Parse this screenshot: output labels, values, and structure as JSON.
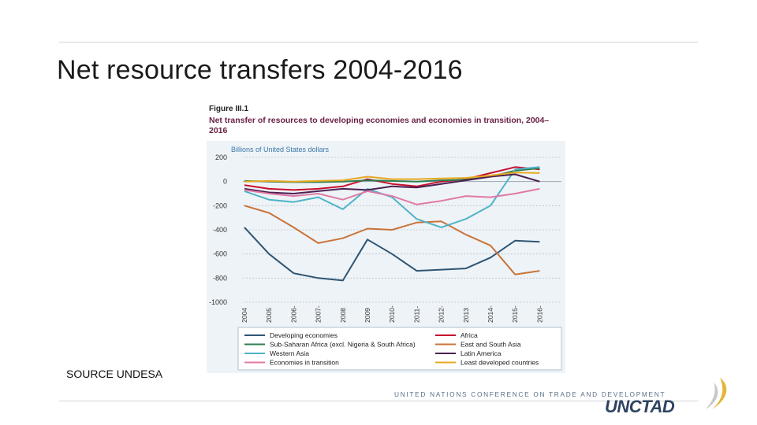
{
  "slide": {
    "title": "Net resource transfers 2004-2016",
    "source": "SOURCE UNDESA"
  },
  "figure": {
    "label": "Figure III.1",
    "caption": "Net transfer of resources to developing economies and economies in transition, 2004–2016",
    "unit": "Billions of United States dollars"
  },
  "footer": {
    "org_name": "UNITED NATIONS CONFERENCE ON TRADE AND DEVELOPMENT",
    "logo_text": "UNCTAD"
  },
  "chart_data": {
    "type": "line",
    "title": "Net transfer of resources to developing economies and economies in transition, 2004–2016",
    "ylabel": "Billions of United States dollars",
    "xlabel": "",
    "ylim": [
      -1000,
      200
    ],
    "yticks": [
      200,
      0,
      -200,
      -400,
      -600,
      -800,
      -1000
    ],
    "x": [
      2004,
      2005,
      2006,
      2007,
      2008,
      2009,
      2010,
      2011,
      2012,
      2013,
      2014,
      2015,
      2016
    ],
    "xtick_labels": [
      "2004",
      "2005",
      "2006-",
      "2007-",
      "2008",
      "2009",
      "2010-",
      "2011-",
      "2012-",
      "2013",
      "2014-",
      "2015-",
      "2016-"
    ],
    "grid": true,
    "series": [
      {
        "name": "Developing economies",
        "color": "#2e5574",
        "values": [
          -380,
          -600,
          -760,
          -800,
          -820,
          -480,
          -600,
          -740,
          -730,
          -720,
          -630,
          -490,
          -500
        ]
      },
      {
        "name": "Africa",
        "color": "#c8102e",
        "values": [
          -30,
          -60,
          -70,
          -60,
          -40,
          20,
          -20,
          -40,
          0,
          20,
          70,
          120,
          100
        ]
      },
      {
        "name": "Sub-Saharan Africa (excl. Nigeria & South Africa)",
        "color": "#2e7d4f",
        "values": [
          5,
          0,
          -5,
          -5,
          0,
          10,
          5,
          0,
          10,
          15,
          40,
          90,
          110
        ]
      },
      {
        "name": "East and South Asia",
        "color": "#c8743a",
        "values": [
          -200,
          -260,
          -380,
          -510,
          -470,
          -390,
          -400,
          -340,
          -330,
          -440,
          -530,
          -770,
          -740
        ]
      },
      {
        "name": "Western Asia",
        "color": "#4fb3c7",
        "values": [
          -80,
          -150,
          -170,
          -130,
          -230,
          -60,
          -130,
          -310,
          -380,
          -310,
          -200,
          100,
          120
        ]
      },
      {
        "name": "Latin America",
        "color": "#4a2050",
        "values": [
          -60,
          -90,
          -100,
          -80,
          -60,
          -70,
          -40,
          -50,
          -20,
          10,
          40,
          60,
          0
        ]
      },
      {
        "name": "Economies in transition",
        "color": "#e07aa6",
        "values": [
          -70,
          -100,
          -120,
          -100,
          -150,
          -80,
          -120,
          -190,
          -160,
          -120,
          -130,
          -100,
          -60
        ]
      },
      {
        "name": "Least developed countries",
        "color": "#e8a820",
        "values": [
          0,
          5,
          0,
          5,
          10,
          40,
          20,
          20,
          25,
          30,
          50,
          75,
          70
        ]
      }
    ],
    "legend_order": [
      "Developing economies",
      "Africa",
      "Sub-Saharan Africa (excl. Nigeria & South Africa)",
      "East and South Asia",
      "Western Asia",
      "Latin America",
      "Economies in transition",
      "Least developed countries"
    ]
  }
}
